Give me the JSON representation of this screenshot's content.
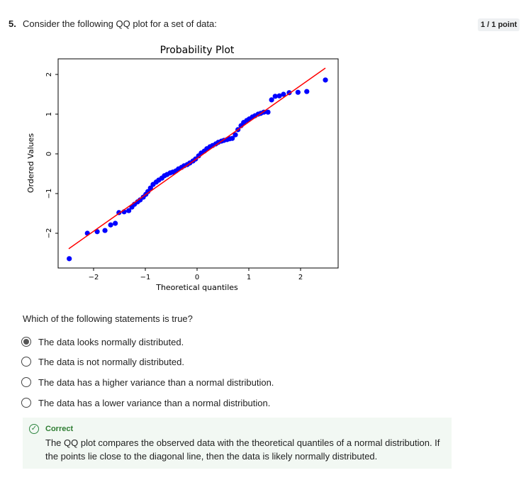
{
  "question": {
    "number": "5.",
    "text": "Consider the following QQ plot for a set of data:",
    "points": "1 / 1 point"
  },
  "chart_data": {
    "type": "scatter",
    "title": "Probability Plot",
    "xlabel": "Theoretical quantiles",
    "ylabel": "Ordered Values",
    "x": [
      -2.47,
      -2.12,
      -1.93,
      -1.78,
      -1.67,
      -1.58,
      -1.51,
      -1.41,
      -1.32,
      -1.26,
      -1.21,
      -1.15,
      -1.1,
      -1.04,
      -0.99,
      -0.95,
      -0.9,
      -0.85,
      -0.79,
      -0.74,
      -0.68,
      -0.63,
      -0.58,
      -0.52,
      -0.47,
      -0.41,
      -0.36,
      -0.3,
      -0.25,
      -0.19,
      -0.14,
      -0.08,
      -0.03,
      0.03,
      0.08,
      0.14,
      0.19,
      0.25,
      0.3,
      0.36,
      0.41,
      0.47,
      0.52,
      0.58,
      0.63,
      0.68,
      0.74,
      0.79,
      0.85,
      0.9,
      0.96,
      1.01,
      1.07,
      1.12,
      1.18,
      1.23,
      1.29,
      1.37,
      1.44,
      1.51,
      1.59,
      1.67,
      1.78,
      1.95,
      2.12,
      2.48
    ],
    "y": [
      -2.64,
      -2.0,
      -1.96,
      -1.93,
      -1.79,
      -1.75,
      -1.48,
      -1.46,
      -1.43,
      -1.34,
      -1.27,
      -1.21,
      -1.16,
      -1.09,
      -1.02,
      -0.95,
      -0.86,
      -0.77,
      -0.71,
      -0.66,
      -0.61,
      -0.55,
      -0.52,
      -0.48,
      -0.46,
      -0.43,
      -0.38,
      -0.34,
      -0.3,
      -0.27,
      -0.23,
      -0.18,
      -0.13,
      -0.05,
      0.02,
      0.07,
      0.13,
      0.18,
      0.21,
      0.25,
      0.29,
      0.32,
      0.34,
      0.36,
      0.38,
      0.39,
      0.48,
      0.61,
      0.71,
      0.79,
      0.84,
      0.88,
      0.93,
      0.96,
      1.0,
      1.02,
      1.05,
      1.05,
      1.36,
      1.45,
      1.46,
      1.5,
      1.54,
      1.55,
      1.57,
      1.86
    ],
    "color": "#0000ff",
    "fit_line": {
      "x": [
        -2.48,
        2.48
      ],
      "y": [
        -2.39,
        2.16
      ],
      "color": "#ff0000"
    },
    "xlim": [
      -2.685,
      2.726
    ],
    "ylim": [
      -2.875,
      2.393
    ],
    "xticks": [
      {
        "value": -2,
        "label": "−2"
      },
      {
        "value": -1,
        "label": "−1"
      },
      0,
      1,
      2
    ],
    "yticks": [
      {
        "value": -2,
        "label": "−2"
      },
      {
        "value": -1,
        "label": "−1"
      },
      0,
      1,
      2
    ]
  },
  "prompt": "Which of the following statements is true?",
  "options": [
    "The data looks normally distributed.",
    "The data is not normally distributed.",
    "The data has a higher variance than a normal distribution.",
    "The data has a lower variance than a normal distribution."
  ],
  "selected": 0,
  "feedback": {
    "status": "Correct",
    "text": "The QQ plot compares the observed data with the theoretical quantiles of a normal distribution. If the points lie close to the diagonal line, then the data is likely normally distributed."
  }
}
